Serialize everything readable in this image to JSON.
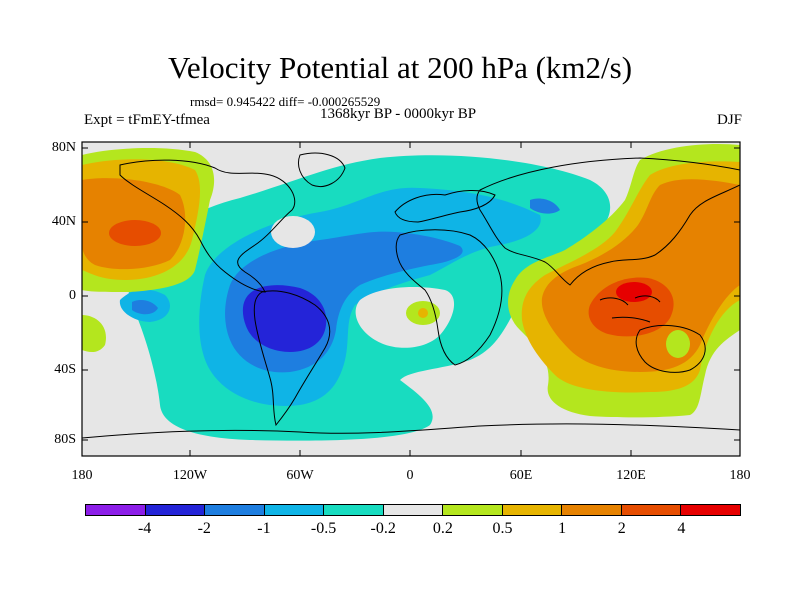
{
  "title": "Velocity Potential at 200 hPa (km2/s)",
  "stats": "rmsd= 0.945422 diff= -0.000265529",
  "period": "1368kyr BP - 0000kyr BP",
  "experiment": "Expt = tFmEY-tfmea",
  "season": "DJF",
  "lat_ticks": [
    "80N",
    "40N",
    "0",
    "40S",
    "80S"
  ],
  "lon_ticks": [
    "180",
    "120W",
    "60W",
    "0",
    "60E",
    "120E",
    "180"
  ],
  "colorbar": {
    "colors": [
      "#8c1ee8",
      "#2424d8",
      "#1e7ee0",
      "#0fb4e6",
      "#18dcc0",
      "#e6e6e6",
      "#b4e61e",
      "#e6b400",
      "#e68200",
      "#e64d00",
      "#e60000"
    ],
    "labels": [
      "-4",
      "-2",
      "-1",
      "-0.5",
      "-0.2",
      "0.2",
      "0.5",
      "1",
      "2",
      "4"
    ]
  },
  "legend_colors": {
    "neutral": "#e6e6e6",
    "neg_02": "#18dcc0",
    "neg_05": "#0fb4e6",
    "neg_1": "#1e7ee0",
    "neg_2": "#2424d8",
    "pos_02": "#b4e61e",
    "pos_05": "#e6b400",
    "pos_1": "#e68200",
    "pos_2": "#e64d00",
    "pos_4": "#e60000"
  }
}
